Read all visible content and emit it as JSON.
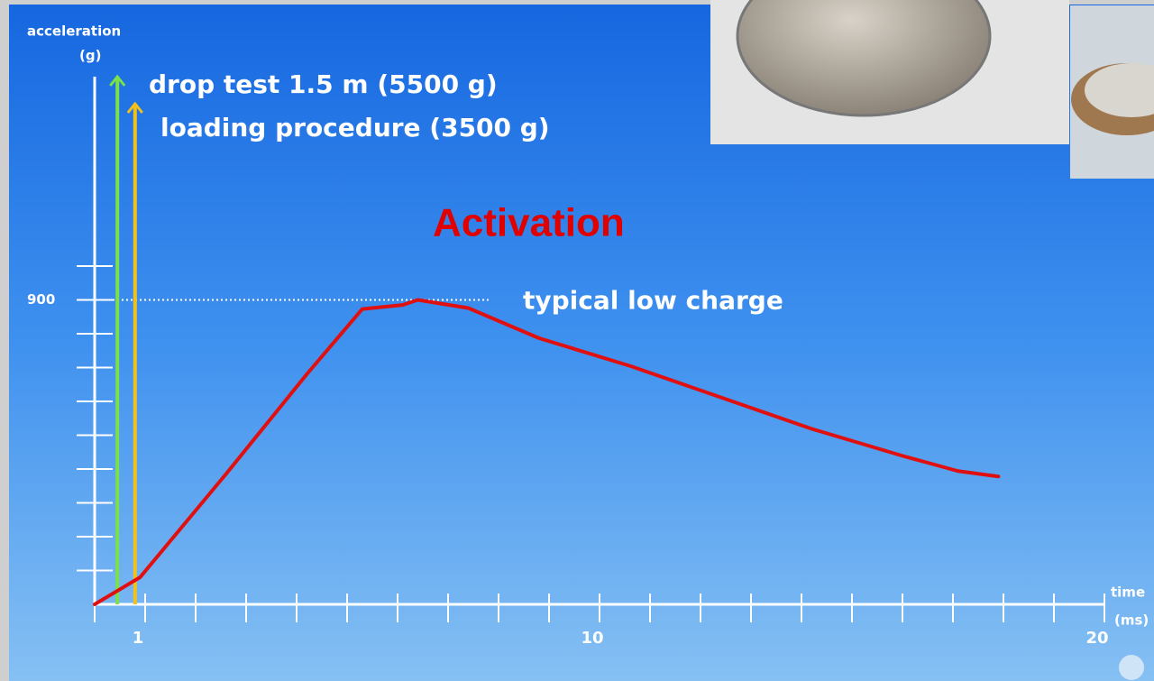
{
  "chart_data": {
    "type": "line",
    "y_label": "acceleration",
    "y_unit": "(g)",
    "x_label": "time",
    "x_unit": "(ms)",
    "title": "Activation",
    "x": [
      0,
      0.9,
      2.6,
      4.2,
      5.3,
      6.1,
      6.4,
      7.4,
      8.8,
      10.6,
      12.4,
      14.2,
      16.0,
      17.1,
      17.9
    ],
    "series": [
      {
        "name": "typical low charge",
        "color": "#e01010",
        "values": [
          0,
          80,
          385,
          680,
          873,
          885,
          900,
          876,
          787,
          705,
          612,
          519,
          439,
          394,
          378
        ]
      }
    ],
    "xlim": [
      0,
      20
    ],
    "ylim": [
      0,
      1560
    ],
    "xticks": [
      1,
      10,
      20
    ],
    "yticks": [
      900
    ],
    "minor_xticks": [
      0,
      1,
      2,
      3,
      4,
      5,
      6,
      7,
      8,
      9,
      10,
      11,
      12,
      13,
      14,
      15,
      16,
      17,
      18,
      19,
      20
    ],
    "minor_yticks": [
      100,
      200,
      300,
      400,
      500,
      600,
      700,
      800,
      900,
      1000
    ],
    "reference_line": {
      "value": 900,
      "x_end": 7.8
    },
    "markers": [
      {
        "label": "drop test 1.5 m (5500 g)",
        "x": 0.45,
        "color": "#7be04a"
      },
      {
        "label": "loading procedure (3500 g)",
        "x": 0.8,
        "color": "#f2c21a"
      }
    ]
  }
}
